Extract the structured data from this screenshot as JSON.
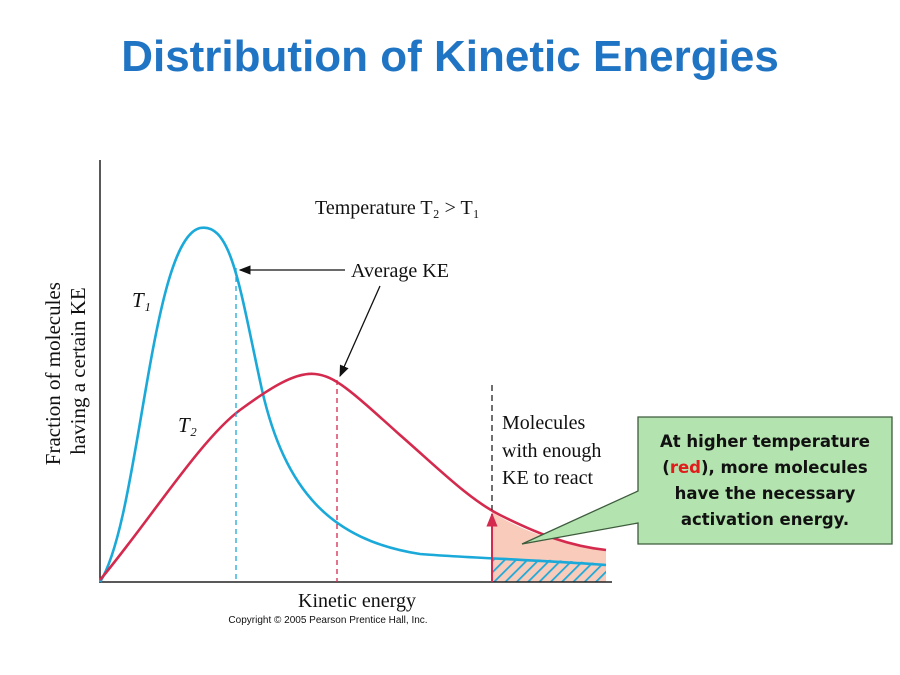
{
  "slide": {
    "title": "Distribution of Kinetic Energies"
  },
  "figure": {
    "y_axis_label_line1": "Fraction of molecules",
    "y_axis_label_line2": "having a certain KE",
    "x_axis_label": "Kinetic energy",
    "temperature_label": "Temperature T₂ > T₁",
    "curve_t1_label": "T₁",
    "curve_t2_label": "T₂",
    "average_ke_label": "Average KE",
    "threshold_label_line1": "Molecules",
    "threshold_label_line2": "with enough",
    "threshold_label_line3": "KE to react",
    "copyright": "Copyright © 2005 Pearson Prentice Hall, Inc.",
    "colors": {
      "t1": "#1aa9d8",
      "t2": "#d42a4e",
      "shade": "#f8cbbb"
    }
  },
  "callout": {
    "before": "At higher temperature (",
    "highlight": "red",
    "after": "), more molecules have the necessary activation energy.",
    "colors": {
      "background": "#b3e3ae",
      "highlight": "#e21b1b"
    }
  }
}
